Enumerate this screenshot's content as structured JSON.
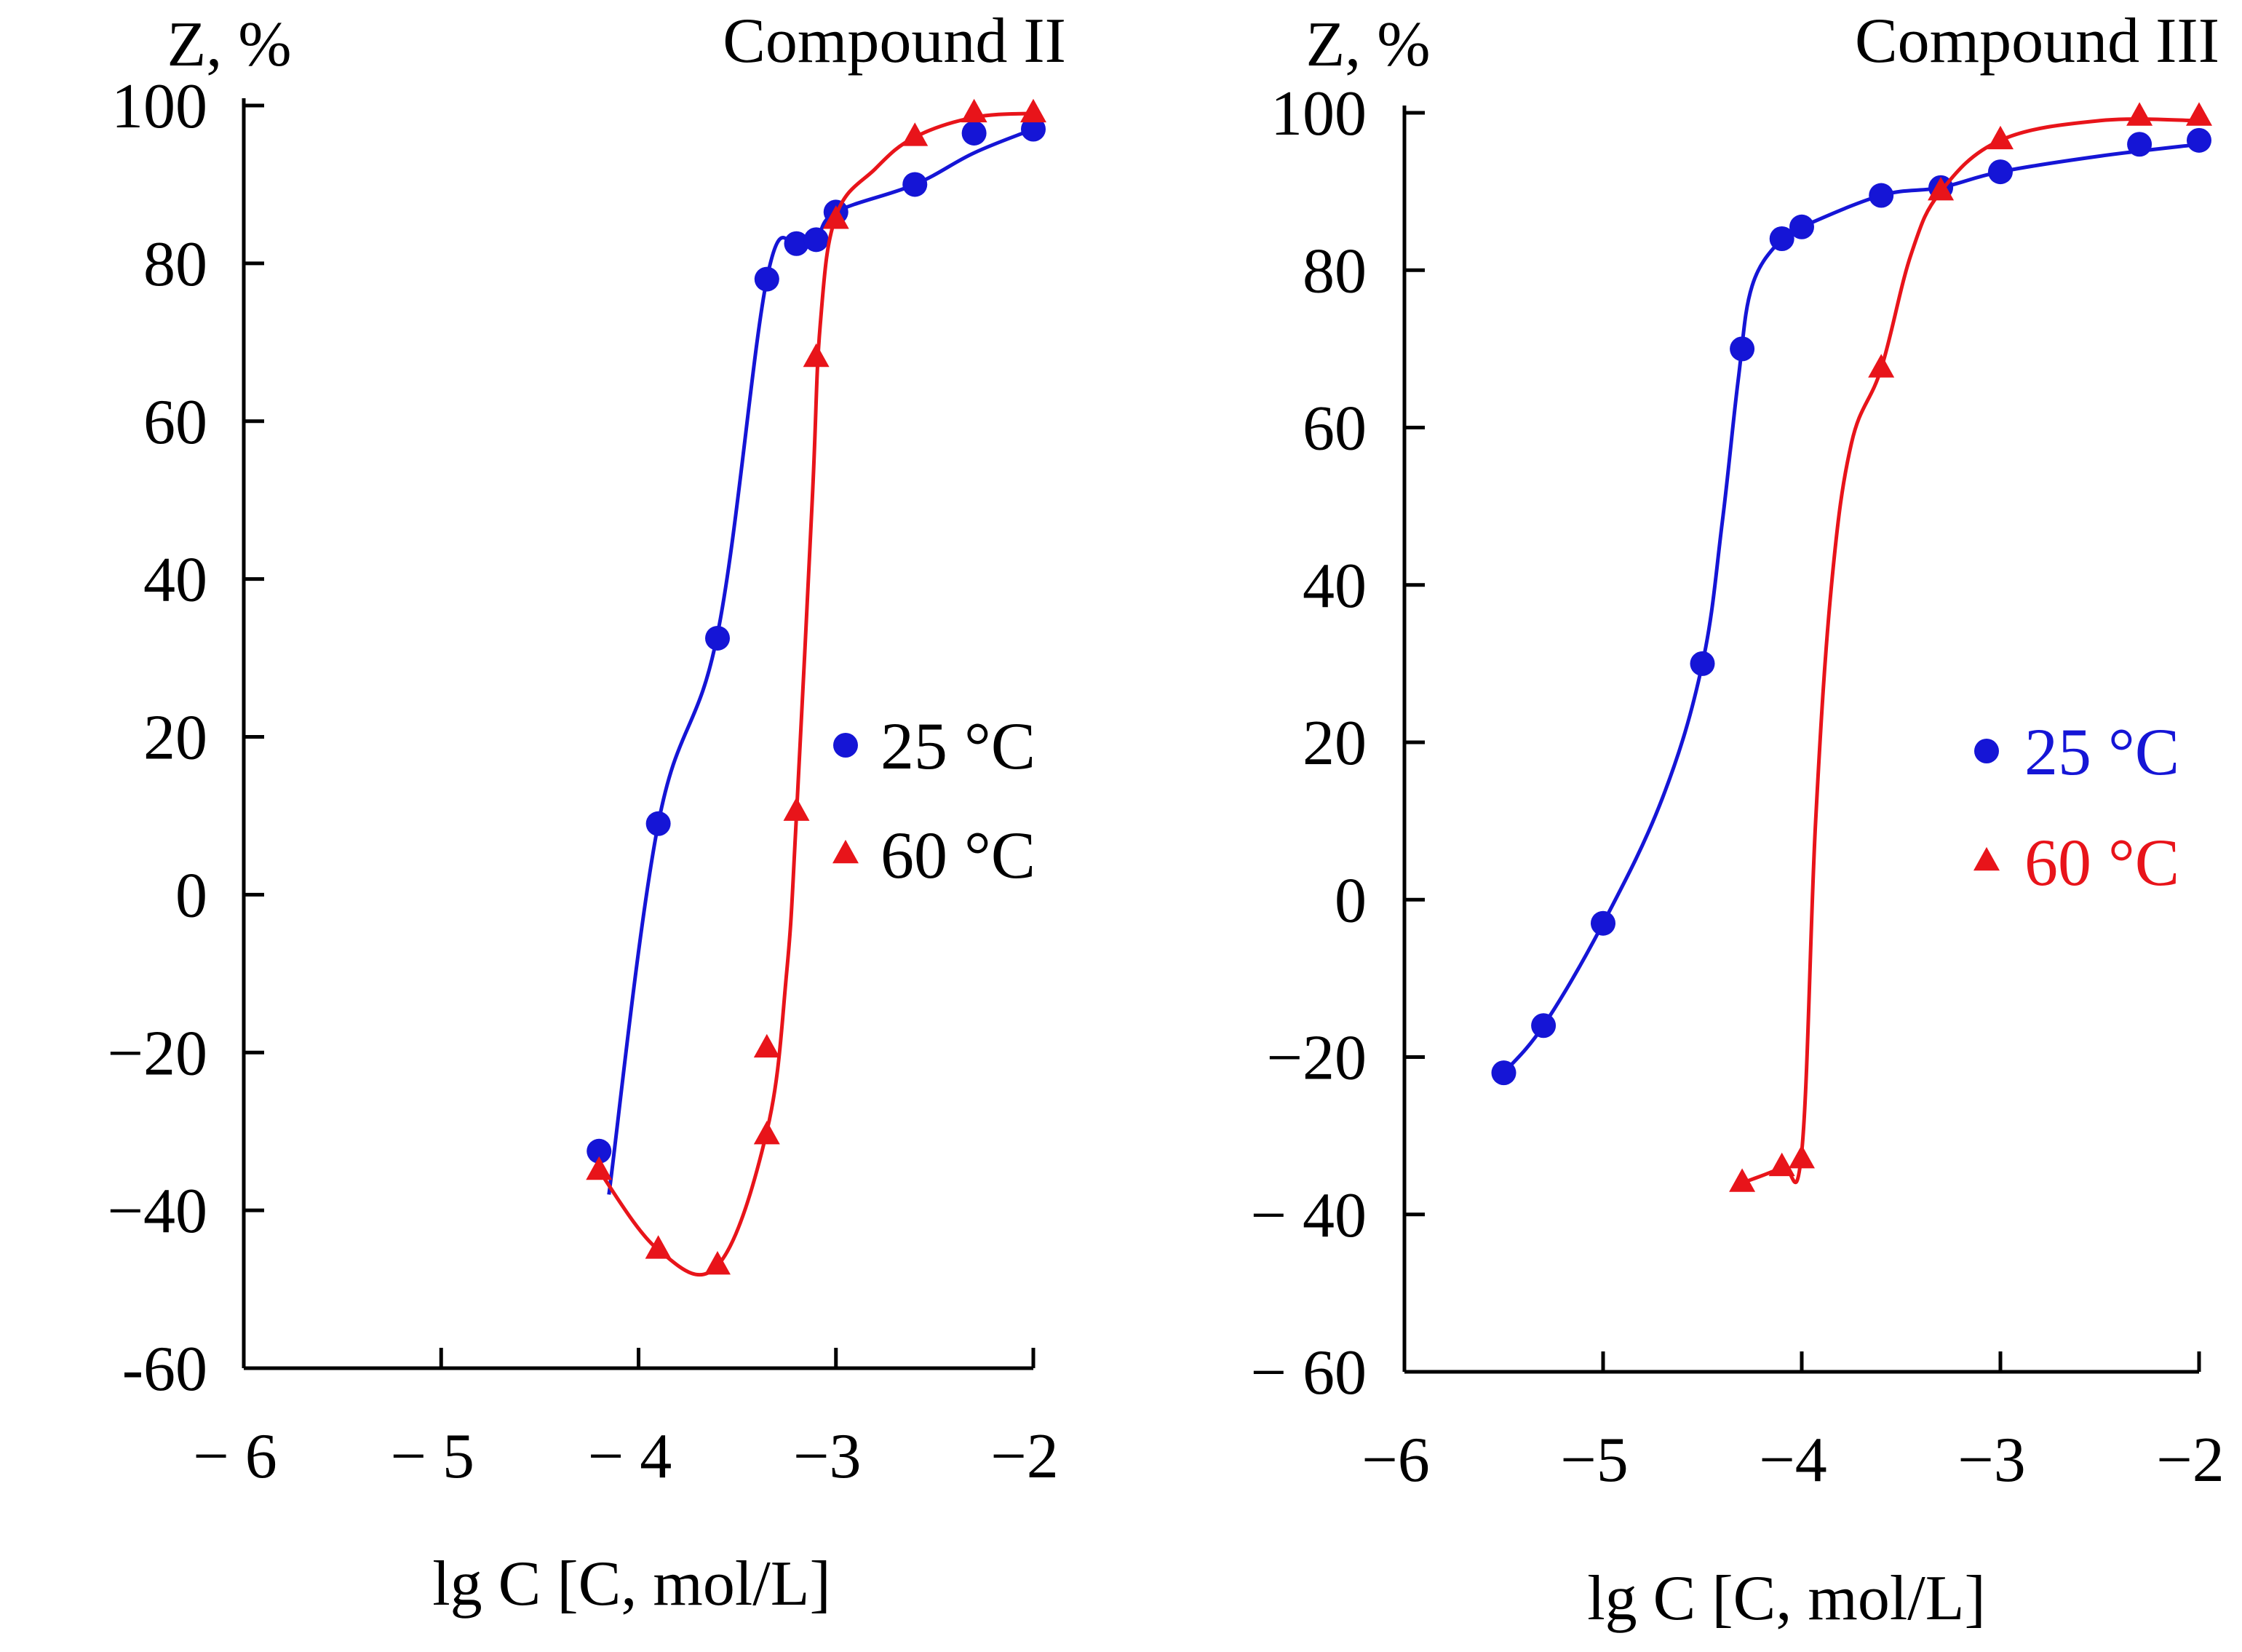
{
  "chart_data": [
    {
      "type": "line",
      "title": "Compound II",
      "ylabel": "Z, %",
      "xlabel": "lg C [C, mol/L]",
      "xlim": [
        -6,
        -2
      ],
      "ylim": [
        -60,
        100
      ],
      "xticks": [
        -6,
        -5,
        -4,
        -3,
        -2
      ],
      "xtick_labels": [
        "− 6",
        "− 5",
        "− 4",
        "−3",
        "−2"
      ],
      "yticks": [
        100,
        80,
        60,
        40,
        20,
        0,
        -20,
        -40,
        -60
      ],
      "ytick_labels": [
        "100",
        "80",
        "60",
        "40",
        "20",
        "0",
        "−20",
        "−40",
        "-60"
      ],
      "series": [
        {
          "name": "25 °C",
          "color": "#1515d6",
          "marker": "circle",
          "points": [
            [
              -4.2,
              -32.5
            ],
            [
              -3.9,
              9
            ],
            [
              -3.6,
              32.5
            ],
            [
              -3.35,
              78
            ],
            [
              -3.2,
              82.5
            ],
            [
              -3.1,
              83
            ],
            [
              -3.0,
              86.5
            ],
            [
              -2.6,
              90
            ],
            [
              -2.3,
              96.5
            ],
            [
              -2.0,
              97
            ]
          ],
          "curve": [
            [
              -4.15,
              -38
            ],
            [
              -3.9,
              9
            ],
            [
              -3.6,
              33
            ],
            [
              -3.35,
              78
            ],
            [
              -3.2,
              82.5
            ],
            [
              -3.1,
              83
            ],
            [
              -3.0,
              86.5
            ],
            [
              -2.6,
              90
            ],
            [
              -2.3,
              94
            ],
            [
              -2.0,
              97
            ]
          ]
        },
        {
          "name": "60 °C",
          "color": "#e8141a",
          "marker": "triangle",
          "points": [
            [
              -4.2,
              -35
            ],
            [
              -3.9,
              -45
            ],
            [
              -3.6,
              -47
            ],
            [
              -3.35,
              -30.5
            ],
            [
              -3.35,
              -19.5
            ],
            [
              -3.2,
              10.5
            ],
            [
              -3.1,
              68
            ],
            [
              -3.0,
              85.5
            ],
            [
              -2.6,
              96
            ],
            [
              -2.3,
              99
            ],
            [
              -2.0,
              99
            ]
          ],
          "curve": [
            [
              -4.2,
              -35
            ],
            [
              -3.9,
              -45
            ],
            [
              -3.6,
              -47
            ],
            [
              -3.35,
              -30
            ],
            [
              -3.25,
              -10
            ],
            [
              -3.2,
              10
            ],
            [
              -3.12,
              50
            ],
            [
              -3.08,
              72
            ],
            [
              -3.0,
              86
            ],
            [
              -2.8,
              92
            ],
            [
              -2.6,
              96
            ],
            [
              -2.3,
              98.5
            ],
            [
              -2.0,
              99
            ]
          ]
        }
      ],
      "legend": {
        "placement": "center-right",
        "entries": [
          "25 °C",
          "60 °C"
        ]
      }
    },
    {
      "type": "line",
      "title": "Compound III",
      "ylabel": "Z, %",
      "xlabel": "lg C [C, mol/L]",
      "xlim": [
        -6,
        -2
      ],
      "ylim": [
        -60,
        100
      ],
      "xticks": [
        -6,
        -5,
        -4,
        -3,
        -2
      ],
      "xtick_labels": [
        "−6",
        "−5",
        "−4",
        "−3",
        "−2"
      ],
      "yticks": [
        100,
        80,
        60,
        40,
        20,
        0,
        -20,
        -40,
        -60
      ],
      "ytick_labels": [
        "100",
        "80",
        "60",
        "40",
        "20",
        "0",
        "−20",
        "− 40",
        "− 60"
      ],
      "series": [
        {
          "name": "25 °C",
          "color": "#1515d6",
          "marker": "circle",
          "points": [
            [
              -5.5,
              -22
            ],
            [
              -5.3,
              -16
            ],
            [
              -5.0,
              -3
            ],
            [
              -4.5,
              30
            ],
            [
              -4.3,
              70
            ],
            [
              -4.1,
              84
            ],
            [
              -4.0,
              85.5
            ],
            [
              -3.6,
              89.5
            ],
            [
              -3.3,
              90.5
            ],
            [
              -3.0,
              92.5
            ],
            [
              -2.3,
              96
            ],
            [
              -2.0,
              96.5
            ]
          ],
          "curve": [
            [
              -5.5,
              -22
            ],
            [
              -5.3,
              -16
            ],
            [
              -5.0,
              -3
            ],
            [
              -4.7,
              13
            ],
            [
              -4.5,
              30
            ],
            [
              -4.4,
              48
            ],
            [
              -4.32,
              66
            ],
            [
              -4.25,
              78
            ],
            [
              -4.1,
              84
            ],
            [
              -4.0,
              85.5
            ],
            [
              -3.6,
              89.5
            ],
            [
              -3.3,
              90.5
            ],
            [
              -3.0,
              92.5
            ],
            [
              -2.5,
              94.5
            ],
            [
              -2.0,
              96
            ]
          ]
        },
        {
          "name": "60 °C",
          "color": "#e8141a",
          "marker": "triangle",
          "points": [
            [
              -4.3,
              -36
            ],
            [
              -4.1,
              -34
            ],
            [
              -4.0,
              -33
            ],
            [
              -3.6,
              67.5
            ],
            [
              -3.3,
              90
            ],
            [
              -3.0,
              96.5
            ],
            [
              -2.3,
              99.5
            ],
            [
              -2.0,
              99.5
            ]
          ],
          "curve": [
            [
              -4.3,
              -36
            ],
            [
              -4.1,
              -34
            ],
            [
              -4.0,
              -32
            ],
            [
              -3.93,
              10
            ],
            [
              -3.85,
              40
            ],
            [
              -3.75,
              58
            ],
            [
              -3.6,
              67.5
            ],
            [
              -3.45,
              82
            ],
            [
              -3.3,
              90
            ],
            [
              -3.0,
              96.5
            ],
            [
              -2.5,
              99
            ],
            [
              -2.0,
              99
            ]
          ]
        }
      ],
      "legend": {
        "placement": "center-right",
        "entries": [
          "25 °C",
          "60 °C"
        ]
      }
    }
  ]
}
